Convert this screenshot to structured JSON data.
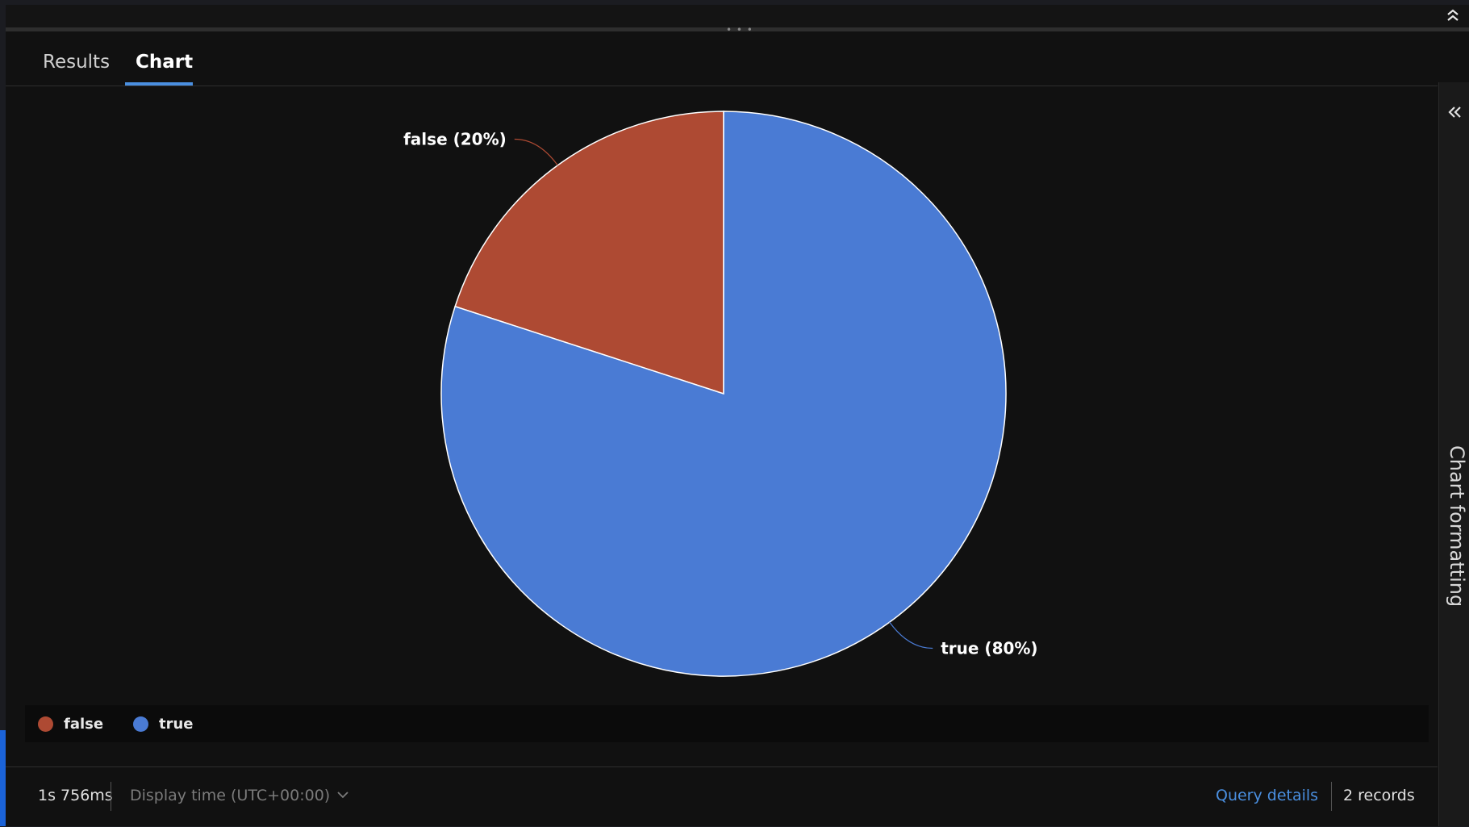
{
  "tabs": [
    {
      "label": "Results",
      "active": false
    },
    {
      "label": "Chart",
      "active": true
    }
  ],
  "side_panel": {
    "label": "Chart formatting",
    "collapse_icon": "double-chevron-left-icon"
  },
  "top_bar": {
    "collapse_icon": "double-chevron-up-icon"
  },
  "chart_data": {
    "type": "pie",
    "categories": [
      "false",
      "true"
    ],
    "values": [
      20,
      80
    ],
    "labels": [
      "false (20%)",
      "true (80%)"
    ],
    "colors": [
      "#ae4a33",
      "#4a7bd4"
    ],
    "legend": {
      "placement": "bottom-left",
      "items": [
        "false",
        "true"
      ]
    }
  },
  "status_bar": {
    "duration": "1s 756ms",
    "display_time": "Display time (UTC+00:00)",
    "query_details": "Query details",
    "records": "2 records"
  },
  "colors": {
    "accent": "#4a8fe0",
    "background": "#111111"
  }
}
